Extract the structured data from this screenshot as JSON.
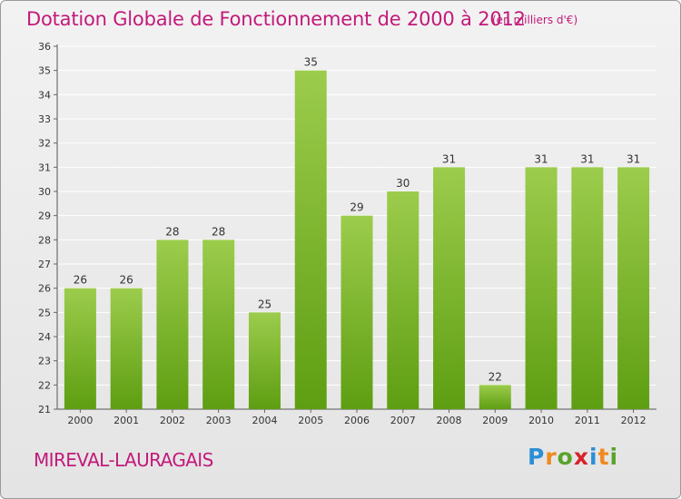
{
  "title": "Dotation Globale de Fonctionnement de 2000 à 2012",
  "subtitle": "(en milliers d'€)",
  "commune": "MIREVAL-LAURAGAIS",
  "logo_text": "Proxiti",
  "colors": {
    "title": "#c21a7a",
    "bar_top": "#9ccc4c",
    "bar_bottom": "#5e9e12",
    "grid": "#ffffff",
    "axis_text": "#333333"
  },
  "chart_data": {
    "type": "bar",
    "categories": [
      "2000",
      "2001",
      "2002",
      "2003",
      "2004",
      "2005",
      "2006",
      "2007",
      "2008",
      "2009",
      "2010",
      "2011",
      "2012"
    ],
    "values": [
      26,
      26,
      28,
      28,
      25,
      35,
      29,
      30,
      31,
      22,
      31,
      31,
      31
    ],
    "ylim": [
      21,
      36
    ],
    "yticks": [
      21,
      22,
      23,
      24,
      25,
      26,
      27,
      28,
      29,
      30,
      31,
      32,
      33,
      34,
      35,
      36
    ],
    "grid": true,
    "data_labels": true
  }
}
